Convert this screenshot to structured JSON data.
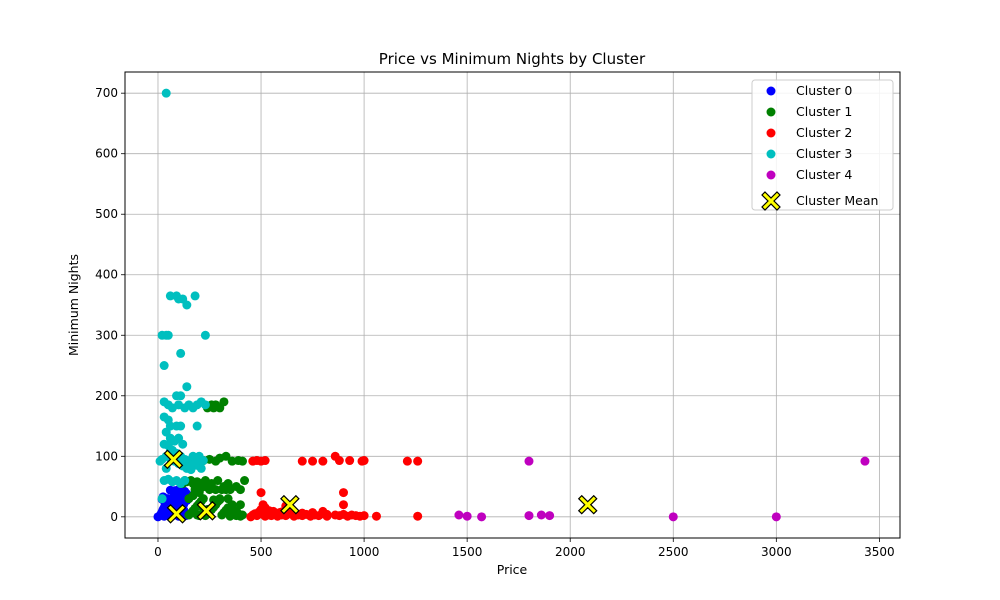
{
  "chart_data": {
    "type": "scatter",
    "title": "Price vs Minimum Nights by Cluster",
    "xlabel": "Price",
    "ylabel": "Minimum Nights",
    "xlim": [
      -160,
      3600
    ],
    "ylim": [
      -35,
      735
    ],
    "xticks": [
      0,
      500,
      1000,
      1500,
      2000,
      2500,
      3000,
      3500
    ],
    "yticks": [
      0,
      100,
      200,
      300,
      400,
      500,
      600,
      700
    ],
    "grid": true,
    "legend_position": "top-right",
    "series": [
      {
        "name": "Cluster 0",
        "color": "#0000ff",
        "points": [
          [
            0,
            0
          ],
          [
            10,
            2
          ],
          [
            15,
            5
          ],
          [
            20,
            8
          ],
          [
            25,
            12
          ],
          [
            30,
            15
          ],
          [
            35,
            20
          ],
          [
            40,
            25
          ],
          [
            45,
            30
          ],
          [
            50,
            3
          ],
          [
            55,
            6
          ],
          [
            60,
            10
          ],
          [
            65,
            14
          ],
          [
            70,
            18
          ],
          [
            75,
            22
          ],
          [
            80,
            26
          ],
          [
            85,
            30
          ],
          [
            90,
            35
          ],
          [
            95,
            40
          ],
          [
            100,
            1
          ],
          [
            105,
            4
          ],
          [
            110,
            9
          ],
          [
            115,
            13
          ],
          [
            120,
            17
          ],
          [
            125,
            21
          ],
          [
            130,
            28
          ],
          [
            135,
            33
          ],
          [
            140,
            38
          ],
          [
            30,
            1
          ],
          [
            40,
            3
          ],
          [
            50,
            7
          ],
          [
            60,
            11
          ],
          [
            70,
            2
          ],
          [
            80,
            5
          ],
          [
            90,
            16
          ],
          [
            100,
            24
          ],
          [
            110,
            31
          ],
          [
            120,
            36
          ],
          [
            130,
            42
          ],
          [
            20,
            29
          ],
          [
            25,
            33
          ],
          [
            35,
            4
          ],
          [
            45,
            17
          ],
          [
            55,
            23
          ],
          [
            65,
            27
          ],
          [
            75,
            32
          ],
          [
            85,
            37
          ],
          [
            95,
            44
          ],
          [
            105,
            19
          ],
          [
            115,
            8
          ],
          [
            125,
            11
          ],
          [
            135,
            2
          ],
          [
            140,
            27
          ],
          [
            60,
            44
          ],
          [
            80,
            43
          ],
          [
            100,
            45
          ],
          [
            120,
            42
          ]
        ]
      },
      {
        "name": "Cluster 1",
        "color": "#008000",
        "points": [
          [
            150,
            3
          ],
          [
            160,
            6
          ],
          [
            170,
            10
          ],
          [
            180,
            14
          ],
          [
            190,
            18
          ],
          [
            200,
            22
          ],
          [
            210,
            26
          ],
          [
            220,
            30
          ],
          [
            230,
            2
          ],
          [
            240,
            5
          ],
          [
            250,
            9
          ],
          [
            260,
            12
          ],
          [
            270,
            16
          ],
          [
            280,
            20
          ],
          [
            290,
            25
          ],
          [
            300,
            28
          ],
          [
            310,
            3
          ],
          [
            320,
            7
          ],
          [
            330,
            11
          ],
          [
            340,
            15
          ],
          [
            350,
            1
          ],
          [
            360,
            4
          ],
          [
            370,
            8
          ],
          [
            380,
            2
          ],
          [
            390,
            5
          ],
          [
            400,
            1
          ],
          [
            410,
            3
          ],
          [
            170,
            55
          ],
          [
            190,
            58
          ],
          [
            210,
            55
          ],
          [
            230,
            60
          ],
          [
            260,
            55
          ],
          [
            290,
            60
          ],
          [
            330,
            45
          ],
          [
            350,
            45
          ],
          [
            380,
            50
          ],
          [
            400,
            45
          ],
          [
            420,
            60
          ],
          [
            250,
            45
          ],
          [
            280,
            45
          ],
          [
            300,
            30
          ],
          [
            310,
            45
          ],
          [
            340,
            30
          ],
          [
            200,
            40
          ],
          [
            180,
            45
          ],
          [
            100,
            92
          ],
          [
            130,
            92
          ],
          [
            160,
            92
          ],
          [
            190,
            92
          ],
          [
            220,
            93
          ],
          [
            250,
            95
          ],
          [
            280,
            92
          ],
          [
            300,
            97
          ],
          [
            330,
            100
          ],
          [
            360,
            92
          ],
          [
            390,
            93
          ],
          [
            410,
            92
          ],
          [
            260,
            185
          ],
          [
            270,
            180
          ],
          [
            280,
            185
          ],
          [
            300,
            180
          ],
          [
            320,
            190
          ],
          [
            240,
            180
          ],
          [
            160,
            60
          ],
          [
            200,
            2
          ],
          [
            220,
            8
          ],
          [
            240,
            12
          ],
          [
            150,
            30
          ],
          [
            170,
            35
          ],
          [
            190,
            3
          ],
          [
            210,
            48
          ],
          [
            230,
            50
          ],
          [
            270,
            28
          ],
          [
            360,
            20
          ],
          [
            380,
            10
          ],
          [
            400,
            20
          ],
          [
            320,
            50
          ],
          [
            340,
            55
          ],
          [
            120,
            55
          ],
          [
            140,
            58
          ],
          [
            130,
            60
          ]
        ]
      },
      {
        "name": "Cluster 2",
        "color": "#ff0000",
        "points": [
          [
            450,
            0
          ],
          [
            460,
            3
          ],
          [
            470,
            5
          ],
          [
            480,
            2
          ],
          [
            490,
            8
          ],
          [
            500,
            12
          ],
          [
            510,
            4
          ],
          [
            520,
            1
          ],
          [
            530,
            6
          ],
          [
            540,
            3
          ],
          [
            550,
            2
          ],
          [
            560,
            9
          ],
          [
            570,
            4
          ],
          [
            580,
            1
          ],
          [
            590,
            7
          ],
          [
            600,
            3
          ],
          [
            620,
            2
          ],
          [
            640,
            5
          ],
          [
            660,
            1
          ],
          [
            680,
            3
          ],
          [
            700,
            2
          ],
          [
            720,
            4
          ],
          [
            740,
            1
          ],
          [
            760,
            3
          ],
          [
            780,
            2
          ],
          [
            800,
            5
          ],
          [
            820,
            1
          ],
          [
            500,
            40
          ],
          [
            510,
            20
          ],
          [
            520,
            15
          ],
          [
            860,
            3
          ],
          [
            880,
            2
          ],
          [
            900,
            4
          ],
          [
            920,
            1
          ],
          [
            940,
            3
          ],
          [
            960,
            2
          ],
          [
            980,
            1
          ],
          [
            1000,
            2
          ],
          [
            1060,
            1
          ],
          [
            1260,
            1
          ],
          [
            900,
            20
          ],
          [
            900,
            40
          ],
          [
            860,
            100
          ],
          [
            700,
            92
          ],
          [
            750,
            92
          ],
          [
            800,
            92
          ],
          [
            880,
            93
          ],
          [
            930,
            93
          ],
          [
            990,
            92
          ],
          [
            1000,
            93
          ],
          [
            1210,
            92
          ],
          [
            1260,
            92
          ],
          [
            460,
            92
          ],
          [
            480,
            93
          ],
          [
            500,
            92
          ],
          [
            520,
            93
          ],
          [
            540,
            10
          ],
          [
            560,
            6
          ],
          [
            600,
            8
          ],
          [
            650,
            10
          ],
          [
            700,
            6
          ],
          [
            750,
            7
          ],
          [
            800,
            9
          ],
          [
            820,
            4
          ],
          [
            620,
            18
          ],
          [
            630,
            12
          ]
        ]
      },
      {
        "name": "Cluster 3",
        "color": "#00bfbf",
        "points": [
          [
            40,
            700
          ],
          [
            60,
            365
          ],
          [
            90,
            365
          ],
          [
            100,
            360
          ],
          [
            120,
            360
          ],
          [
            140,
            350
          ],
          [
            180,
            365
          ],
          [
            110,
            270
          ],
          [
            230,
            300
          ],
          [
            20,
            300
          ],
          [
            40,
            300
          ],
          [
            50,
            300
          ],
          [
            30,
            250
          ],
          [
            140,
            215
          ],
          [
            30,
            190
          ],
          [
            50,
            185
          ],
          [
            70,
            180
          ],
          [
            90,
            200
          ],
          [
            110,
            200
          ],
          [
            130,
            180
          ],
          [
            150,
            185
          ],
          [
            170,
            180
          ],
          [
            190,
            185
          ],
          [
            210,
            190
          ],
          [
            30,
            165
          ],
          [
            50,
            160
          ],
          [
            60,
            150
          ],
          [
            90,
            150
          ],
          [
            110,
            150
          ],
          [
            190,
            150
          ],
          [
            40,
            140
          ],
          [
            60,
            130
          ],
          [
            80,
            125
          ],
          [
            30,
            120
          ],
          [
            50,
            118
          ],
          [
            70,
            110
          ],
          [
            90,
            105
          ],
          [
            110,
            100
          ],
          [
            130,
            95
          ],
          [
            150,
            92
          ],
          [
            170,
            90
          ],
          [
            190,
            85
          ],
          [
            210,
            80
          ],
          [
            40,
            100
          ],
          [
            60,
            96
          ],
          [
            80,
            92
          ],
          [
            100,
            88
          ],
          [
            120,
            84
          ],
          [
            140,
            80
          ],
          [
            160,
            78
          ],
          [
            180,
            95
          ],
          [
            200,
            100
          ],
          [
            30,
            60
          ],
          [
            50,
            62
          ],
          [
            70,
            58
          ],
          [
            90,
            60
          ],
          [
            110,
            55
          ],
          [
            130,
            60
          ],
          [
            20,
            30
          ],
          [
            10,
            92
          ],
          [
            20,
            95
          ],
          [
            230,
            185
          ],
          [
            100,
            185
          ],
          [
            120,
            120
          ],
          [
            100,
            130
          ],
          [
            60,
            110
          ],
          [
            40,
            80
          ],
          [
            170,
            100
          ],
          [
            220,
            93
          ]
        ]
      },
      {
        "name": "Cluster 4",
        "color": "#bf00bf",
        "points": [
          [
            1460,
            3
          ],
          [
            1500,
            1
          ],
          [
            1570,
            0
          ],
          [
            1800,
            92
          ],
          [
            1800,
            2
          ],
          [
            1860,
            3
          ],
          [
            1900,
            2
          ],
          [
            2500,
            0
          ],
          [
            3000,
            0
          ],
          [
            3430,
            92
          ]
        ]
      }
    ],
    "cluster_means": {
      "name": "Cluster Mean",
      "color": "#ffff00",
      "points": [
        [
          75,
          95
        ],
        [
          90,
          5
        ],
        [
          235,
          10
        ],
        [
          640,
          20
        ],
        [
          2085,
          20
        ]
      ]
    }
  }
}
